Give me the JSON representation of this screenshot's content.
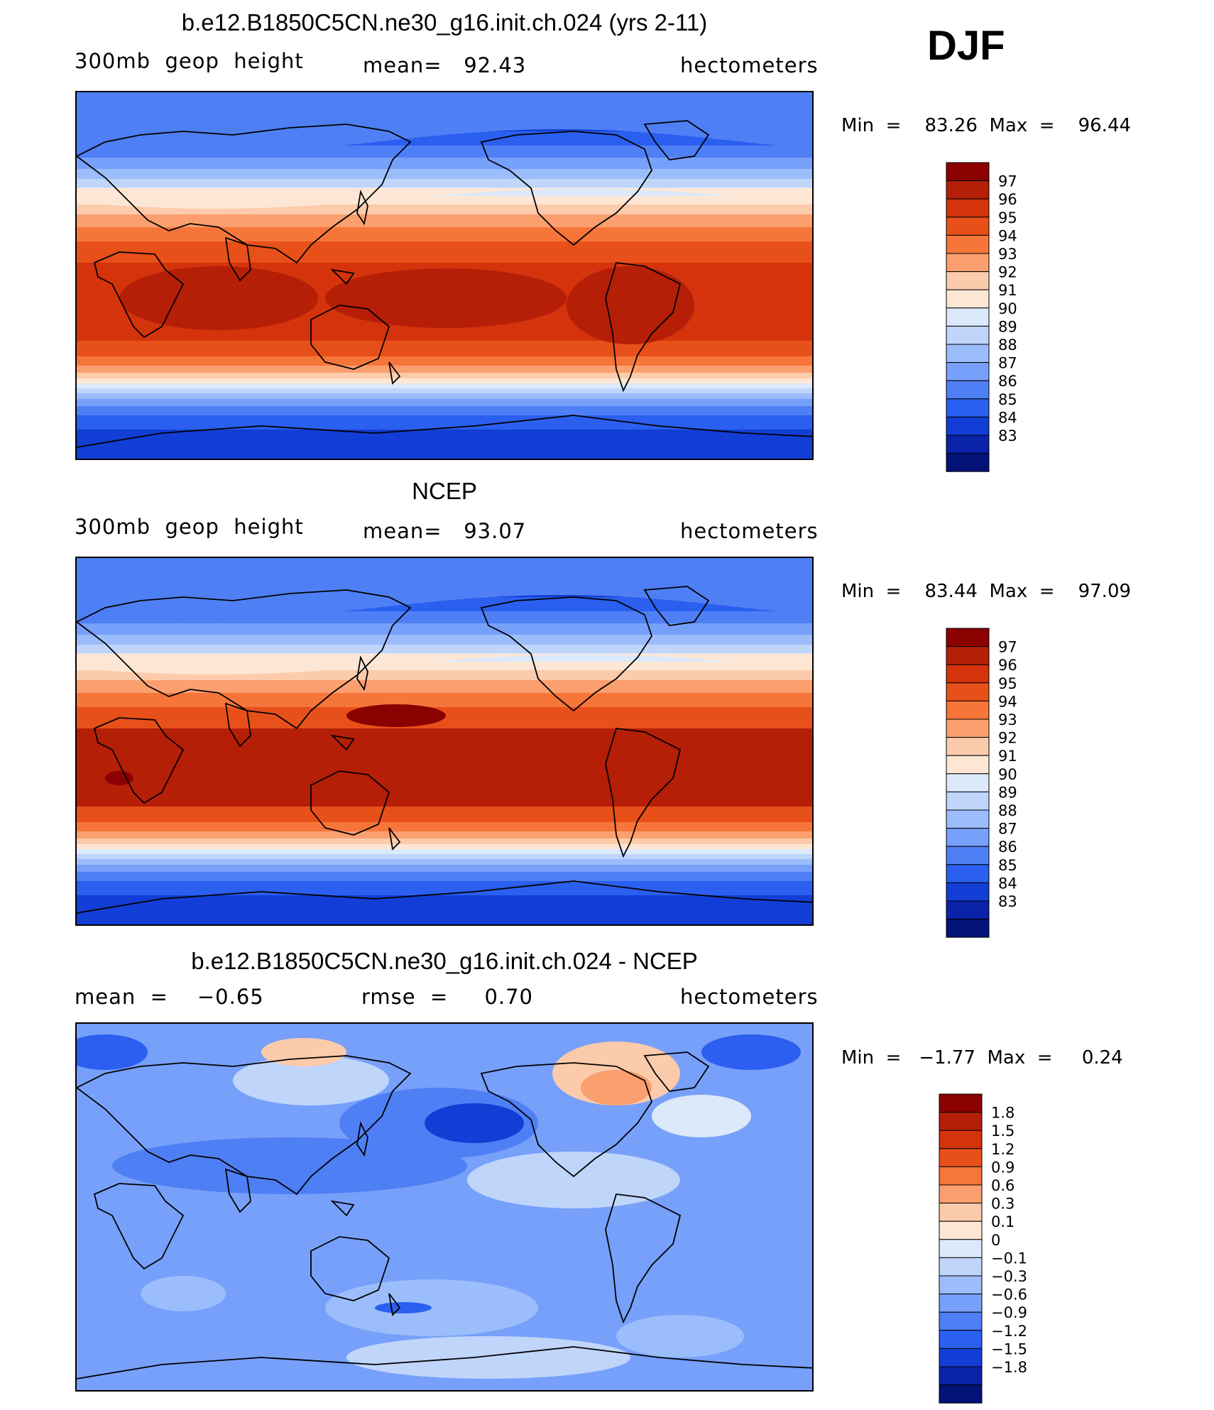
{
  "season": "DJF",
  "panels": [
    {
      "title": "b.e12.B1850C5CN.ne30_g16.init.ch.024 (yrs 2-11)",
      "left_label": "300mb  geop  height",
      "center_label": "mean=   92.43",
      "right_label": "hectometers",
      "minmax": "Min  =    83.26  Max  =    96.44",
      "colorbar_labels": [
        "97",
        "96",
        "95",
        "94",
        "93",
        "92",
        "91",
        "90",
        "89",
        "88",
        "87",
        "86",
        "85",
        "84",
        "83"
      ]
    },
    {
      "title": "NCEP",
      "left_label": "300mb  geop  height",
      "center_label": "mean=   93.07",
      "right_label": "hectometers",
      "minmax": "Min  =    83.44  Max  =    97.09",
      "colorbar_labels": [
        "97",
        "96",
        "95",
        "94",
        "93",
        "92",
        "91",
        "90",
        "89",
        "88",
        "87",
        "86",
        "85",
        "84",
        "83"
      ]
    },
    {
      "title": "b.e12.B1850C5CN.ne30_g16.init.ch.024 - NCEP",
      "left_label": "mean  =    −0.65",
      "center_label": "rmse  =     0.70",
      "right_label": "hectometers",
      "minmax": "Min  =   −1.77  Max  =     0.24",
      "colorbar_labels": [
        "1.8",
        "1.5",
        "1.2",
        "0.9",
        "0.6",
        "0.3",
        "0.1",
        "0",
        "−0.1",
        "−0.3",
        "−0.6",
        "−0.9",
        "−1.2",
        "−1.5",
        "−1.8"
      ]
    }
  ],
  "colorbar_colors": [
    "#8b0000",
    "#b51f07",
    "#d5330c",
    "#e8501a",
    "#f6763a",
    "#fb9f6f",
    "#fccbab",
    "#fde7d4",
    "#dce9fb",
    "#bfd5fa",
    "#9cbdfb",
    "#77a0fa",
    "#4f7ff4",
    "#2a5ff0",
    "#123ed6",
    "#0a22a8",
    "#031276"
  ]
}
